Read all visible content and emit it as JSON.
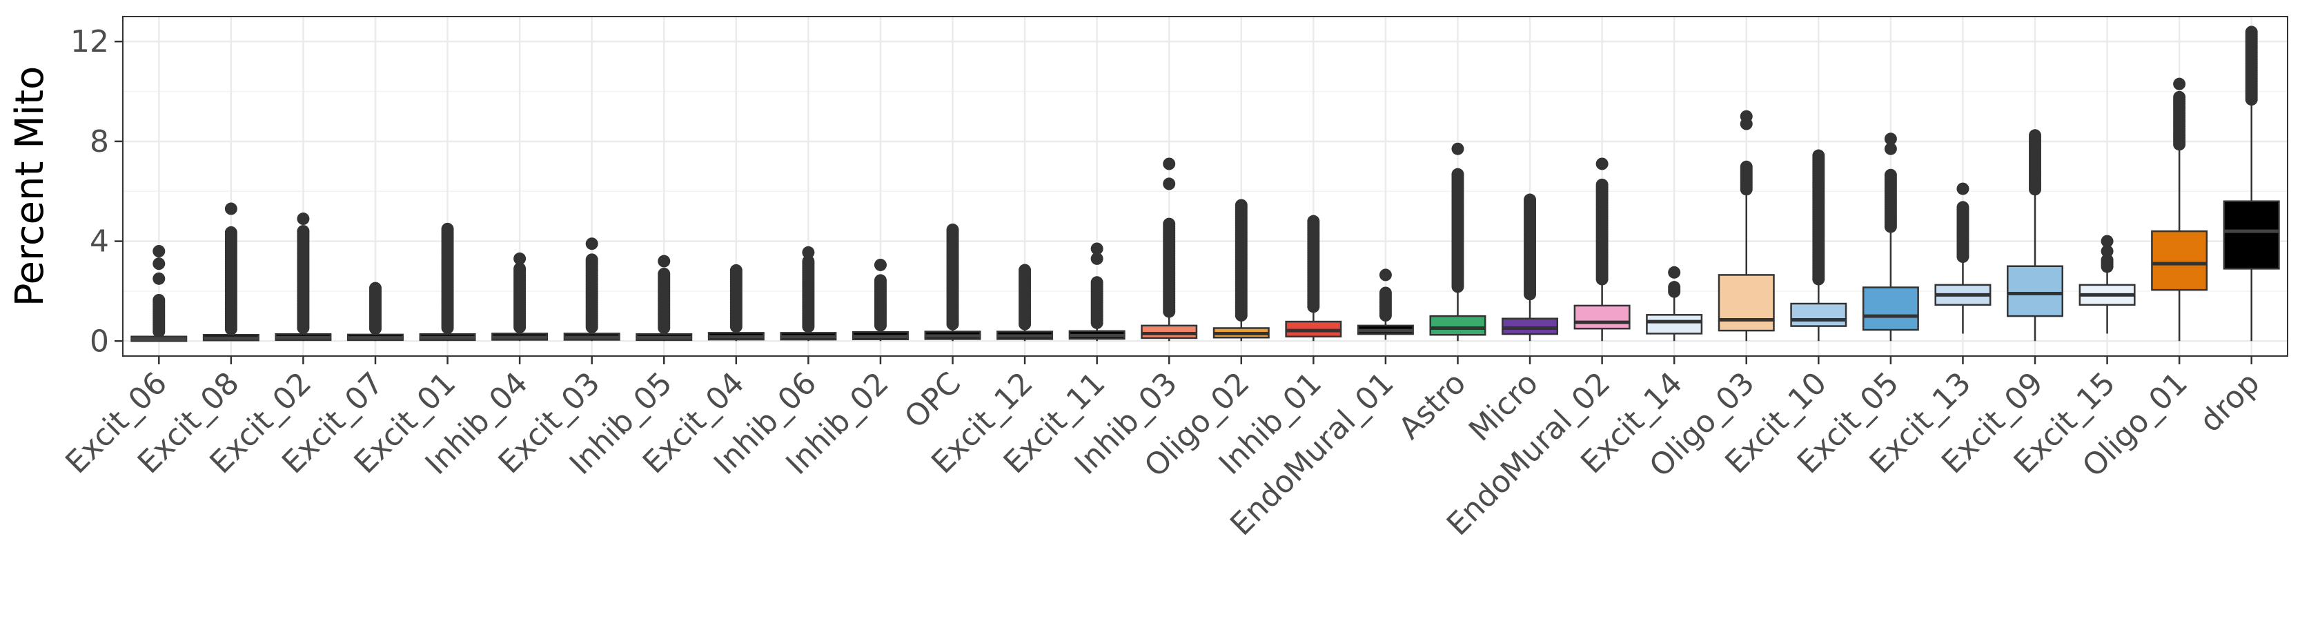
{
  "chart_data": {
    "type": "boxplot",
    "ylabel": "Percent Mito",
    "xlabel": "",
    "ylim": [
      -0.6,
      13.0
    ],
    "yticks": [
      0,
      4,
      8,
      12
    ],
    "y_tick_labels": [
      "0",
      "4",
      "8",
      "12"
    ],
    "grid": true,
    "categories": [
      "Excit_06",
      "Excit_08",
      "Excit_02",
      "Excit_07",
      "Excit_01",
      "Inhib_04",
      "Excit_03",
      "Inhib_05",
      "Excit_04",
      "Inhib_06",
      "Inhib_02",
      "OPC",
      "Excit_12",
      "Excit_11",
      "Inhib_03",
      "Oligo_02",
      "Inhib_01",
      "EndoMural_01",
      "Astro",
      "Micro",
      "EndoMural_02",
      "Excit_14",
      "Oligo_03",
      "Excit_10",
      "Excit_05",
      "Excit_13",
      "Excit_09",
      "Excit_15",
      "Oligo_01",
      "drop"
    ],
    "colors": [
      "#000000",
      "#000000",
      "#000000",
      "#000000",
      "#000000",
      "#000000",
      "#000000",
      "#000000",
      "#000000",
      "#000000",
      "#000000",
      "#000000",
      "#000000",
      "#000000",
      "#F1866B",
      "#E8A13A",
      "#E7493C",
      "#000000",
      "#3BAA6C",
      "#6B3FA0",
      "#F2A3C9",
      "#E0ECF7",
      "#F5CBA2",
      "#A8CCE8",
      "#5BA4D4",
      "#C8DDF0",
      "#93C1E2",
      "#E9F1F9",
      "#E07708",
      "#000000"
    ],
    "boxes": [
      {
        "q1": 0.0,
        "median": 0.08,
        "q3": 0.18,
        "wlo": 0.0,
        "whi": 0.3
      },
      {
        "q1": 0.03,
        "median": 0.12,
        "q3": 0.25,
        "wlo": 0.0,
        "whi": 0.4
      },
      {
        "q1": 0.04,
        "median": 0.14,
        "q3": 0.28,
        "wlo": 0.0,
        "whi": 0.45
      },
      {
        "q1": 0.04,
        "median": 0.13,
        "q3": 0.26,
        "wlo": 0.0,
        "whi": 0.42
      },
      {
        "q1": 0.04,
        "median": 0.14,
        "q3": 0.28,
        "wlo": 0.0,
        "whi": 0.45
      },
      {
        "q1": 0.05,
        "median": 0.15,
        "q3": 0.3,
        "wlo": 0.0,
        "whi": 0.48
      },
      {
        "q1": 0.05,
        "median": 0.15,
        "q3": 0.3,
        "wlo": 0.0,
        "whi": 0.48
      },
      {
        "q1": 0.04,
        "median": 0.14,
        "q3": 0.28,
        "wlo": 0.0,
        "whi": 0.45
      },
      {
        "q1": 0.06,
        "median": 0.17,
        "q3": 0.33,
        "wlo": 0.0,
        "whi": 0.5
      },
      {
        "q1": 0.06,
        "median": 0.17,
        "q3": 0.33,
        "wlo": 0.0,
        "whi": 0.5
      },
      {
        "q1": 0.07,
        "median": 0.18,
        "q3": 0.36,
        "wlo": 0.0,
        "whi": 0.55
      },
      {
        "q1": 0.08,
        "median": 0.2,
        "q3": 0.38,
        "wlo": 0.0,
        "whi": 0.6
      },
      {
        "q1": 0.08,
        "median": 0.2,
        "q3": 0.38,
        "wlo": 0.0,
        "whi": 0.6
      },
      {
        "q1": 0.09,
        "median": 0.22,
        "q3": 0.4,
        "wlo": 0.0,
        "whi": 0.65
      },
      {
        "q1": 0.12,
        "median": 0.3,
        "q3": 0.62,
        "wlo": 0.0,
        "whi": 1.1
      },
      {
        "q1": 0.14,
        "median": 0.3,
        "q3": 0.52,
        "wlo": 0.0,
        "whi": 0.95
      },
      {
        "q1": 0.18,
        "median": 0.42,
        "q3": 0.78,
        "wlo": 0.0,
        "whi": 1.3
      },
      {
        "q1": 0.28,
        "median": 0.42,
        "q3": 0.62,
        "wlo": 0.05,
        "whi": 0.95
      },
      {
        "q1": 0.25,
        "median": 0.52,
        "q3": 1.0,
        "wlo": 0.0,
        "whi": 2.1
      },
      {
        "q1": 0.28,
        "median": 0.52,
        "q3": 0.9,
        "wlo": 0.0,
        "whi": 1.8
      },
      {
        "q1": 0.5,
        "median": 0.75,
        "q3": 1.42,
        "wlo": 0.0,
        "whi": 2.4
      },
      {
        "q1": 0.3,
        "median": 0.78,
        "q3": 1.05,
        "wlo": 0.0,
        "whi": 1.9
      },
      {
        "q1": 0.42,
        "median": 0.85,
        "q3": 2.65,
        "wlo": 0.0,
        "whi": 6.0
      },
      {
        "q1": 0.6,
        "median": 0.85,
        "q3": 1.5,
        "wlo": 0.0,
        "whi": 2.4
      },
      {
        "q1": 0.45,
        "median": 1.0,
        "q3": 2.15,
        "wlo": 0.0,
        "whi": 4.5
      },
      {
        "q1": 1.45,
        "median": 1.85,
        "q3": 2.25,
        "wlo": 0.3,
        "whi": 3.3
      },
      {
        "q1": 1.0,
        "median": 1.9,
        "q3": 3.0,
        "wlo": 0.0,
        "whi": 6.0
      },
      {
        "q1": 1.45,
        "median": 1.85,
        "q3": 2.25,
        "wlo": 0.3,
        "whi": 2.9
      },
      {
        "q1": 2.05,
        "median": 3.1,
        "q3": 4.4,
        "wlo": 0.0,
        "whi": 7.8
      },
      {
        "q1": 2.9,
        "median": 4.4,
        "q3": 5.6,
        "wlo": 0.0,
        "whi": 9.6
      }
    ],
    "outliers": [
      {
        "from": 0.3,
        "to": 1.7,
        "extra": [
          2.5,
          3.1,
          3.6
        ]
      },
      {
        "from": 0.4,
        "to": 4.4,
        "extra": [
          5.3
        ]
      },
      {
        "from": 0.45,
        "to": 4.4,
        "extra": [
          4.9
        ]
      },
      {
        "from": 0.42,
        "to": 2.2,
        "extra": []
      },
      {
        "from": 0.45,
        "to": 4.5,
        "extra": []
      },
      {
        "from": 0.48,
        "to": 2.9,
        "extra": [
          3.3
        ]
      },
      {
        "from": 0.48,
        "to": 3.3,
        "extra": [
          3.9
        ]
      },
      {
        "from": 0.45,
        "to": 2.7,
        "extra": [
          3.2
        ]
      },
      {
        "from": 0.5,
        "to": 2.9,
        "extra": []
      },
      {
        "from": 0.5,
        "to": 3.2,
        "extra": [
          3.55
        ]
      },
      {
        "from": 0.55,
        "to": 2.5,
        "extra": [
          3.05
        ]
      },
      {
        "from": 0.6,
        "to": 4.5,
        "extra": []
      },
      {
        "from": 0.6,
        "to": 2.9,
        "extra": []
      },
      {
        "from": 0.65,
        "to": 2.4,
        "extra": [
          3.3,
          3.7
        ]
      },
      {
        "from": 1.1,
        "to": 4.7,
        "extra": [
          6.3,
          7.1
        ]
      },
      {
        "from": 0.95,
        "to": 5.5,
        "extra": []
      },
      {
        "from": 1.3,
        "to": 4.8,
        "extra": []
      },
      {
        "from": 0.95,
        "to": 2.0,
        "extra": [
          2.65
        ]
      },
      {
        "from": 2.1,
        "to": 6.7,
        "extra": [
          7.7
        ]
      },
      {
        "from": 1.8,
        "to": 5.7,
        "extra": []
      },
      {
        "from": 2.4,
        "to": 6.3,
        "extra": [
          7.1
        ]
      },
      {
        "from": 1.9,
        "to": 2.2,
        "extra": [
          2.75
        ]
      },
      {
        "from": 6.0,
        "to": 7.0,
        "extra": [
          8.7,
          9.0
        ]
      },
      {
        "from": 2.4,
        "to": 7.5,
        "extra": []
      },
      {
        "from": 4.5,
        "to": 6.7,
        "extra": [
          7.7,
          8.1
        ]
      },
      {
        "from": 3.3,
        "to": 5.4,
        "extra": [
          6.1
        ]
      },
      {
        "from": 6.0,
        "to": 8.3,
        "extra": []
      },
      {
        "from": 2.9,
        "to": 3.3,
        "extra": [
          3.6,
          4.0
        ]
      },
      {
        "from": 7.8,
        "to": 9.8,
        "extra": [
          10.3
        ]
      },
      {
        "from": 9.6,
        "to": 12.4,
        "extra": []
      }
    ]
  }
}
